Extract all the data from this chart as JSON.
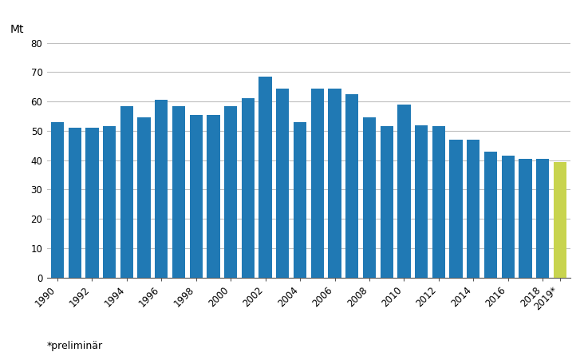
{
  "years": [
    1990,
    1991,
    1992,
    1993,
    1994,
    1995,
    1996,
    1997,
    1998,
    1999,
    2000,
    2001,
    2002,
    2003,
    2004,
    2005,
    2006,
    2007,
    2008,
    2009,
    2010,
    2011,
    2012,
    2013,
    2014,
    2015,
    2016,
    2017,
    2018,
    "2019*"
  ],
  "values": [
    53.0,
    51.0,
    51.0,
    51.5,
    58.5,
    54.5,
    60.5,
    58.5,
    55.5,
    55.5,
    58.5,
    61.0,
    68.5,
    64.5,
    53.0,
    64.5,
    64.5,
    62.5,
    54.5,
    51.5,
    59.0,
    52.0,
    51.5,
    47.0,
    47.0,
    43.0,
    41.5,
    40.5,
    40.5,
    39.5
  ],
  "bar_color_blue": "#2079b4",
  "bar_color_green": "#c8d44e",
  "top_label": "Mt",
  "ylim": [
    0,
    80
  ],
  "yticks": [
    0,
    10,
    20,
    30,
    40,
    50,
    60,
    70,
    80
  ],
  "footnote": "*preliminär",
  "background_color": "#ffffff",
  "grid_color": "#c0c0c0",
  "tick_years": [
    "1990",
    "1992",
    "1994",
    "1996",
    "1998",
    "2000",
    "2002",
    "2004",
    "2006",
    "2008",
    "2010",
    "2012",
    "2014",
    "2016",
    "2018",
    "2019*"
  ]
}
